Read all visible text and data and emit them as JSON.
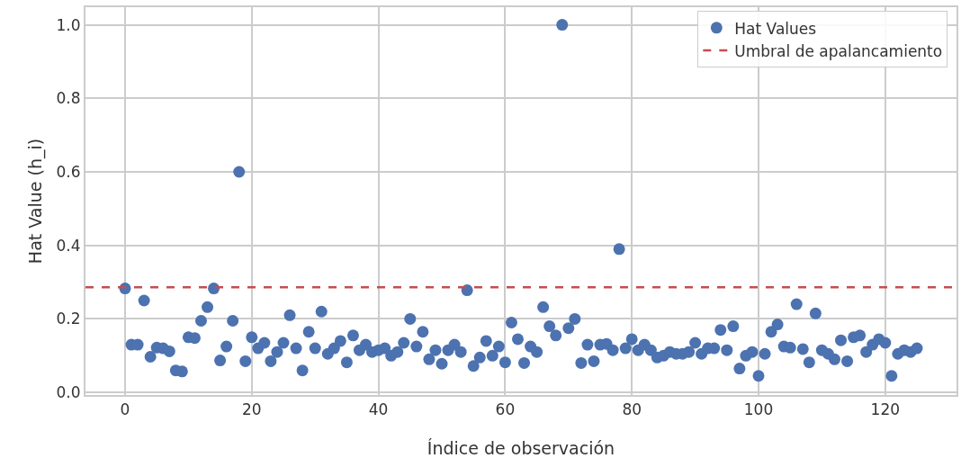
{
  "chart_data": {
    "type": "scatter",
    "xlabel": "Índice de observación",
    "ylabel": "Hat Value (h_i)",
    "x": [
      0,
      1,
      2,
      3,
      4,
      5,
      6,
      7,
      8,
      9,
      10,
      11,
      12,
      13,
      14,
      15,
      16,
      17,
      18,
      19,
      20,
      21,
      22,
      23,
      24,
      25,
      26,
      27,
      28,
      29,
      30,
      31,
      32,
      33,
      34,
      35,
      36,
      37,
      38,
      39,
      40,
      41,
      42,
      43,
      44,
      45,
      46,
      47,
      48,
      49,
      50,
      51,
      52,
      53,
      54,
      55,
      56,
      57,
      58,
      59,
      60,
      61,
      62,
      63,
      64,
      65,
      66,
      67,
      68,
      69,
      70,
      71,
      72,
      73,
      74,
      75,
      76,
      77,
      78,
      79,
      80,
      81,
      82,
      83,
      84,
      85,
      86,
      87,
      88,
      89,
      90,
      91,
      92,
      93,
      94,
      95,
      96,
      97,
      98,
      99,
      100,
      101,
      102,
      103,
      104,
      105,
      106,
      107,
      108,
      109,
      110,
      111,
      112,
      113,
      114,
      115,
      116,
      117,
      118,
      119,
      120,
      121,
      122,
      123,
      124,
      125
    ],
    "series": [
      {
        "name": "Hat Values",
        "color": "#4c72b0",
        "values": [
          0.283,
          0.13,
          0.13,
          0.25,
          0.097,
          0.122,
          0.12,
          0.112,
          0.06,
          0.057,
          0.15,
          0.148,
          0.195,
          0.232,
          0.283,
          0.087,
          0.125,
          0.195,
          0.6,
          0.085,
          0.15,
          0.12,
          0.135,
          0.085,
          0.11,
          0.135,
          0.21,
          0.12,
          0.06,
          0.165,
          0.12,
          0.22,
          0.105,
          0.12,
          0.14,
          0.082,
          0.155,
          0.115,
          0.13,
          0.11,
          0.115,
          0.12,
          0.1,
          0.11,
          0.135,
          0.2,
          0.125,
          0.165,
          0.09,
          0.115,
          0.078,
          0.115,
          0.13,
          0.11,
          0.278,
          0.072,
          0.095,
          0.14,
          0.1,
          0.125,
          0.082,
          0.19,
          0.145,
          0.08,
          0.125,
          0.11,
          0.232,
          0.18,
          0.155,
          1.0,
          0.175,
          0.2,
          0.08,
          0.13,
          0.085,
          0.13,
          0.132,
          0.115,
          0.39,
          0.12,
          0.145,
          0.115,
          0.13,
          0.115,
          0.095,
          0.1,
          0.11,
          0.105,
          0.105,
          0.11,
          0.135,
          0.105,
          0.12,
          0.12,
          0.17,
          0.115,
          0.18,
          0.065,
          0.1,
          0.11,
          0.045,
          0.105,
          0.165,
          0.185,
          0.125,
          0.122,
          0.24,
          0.118,
          0.082,
          0.215,
          0.115,
          0.105,
          0.09,
          0.142,
          0.085,
          0.15,
          0.155,
          0.11,
          0.13,
          0.145,
          0.135,
          0.045,
          0.105,
          0.115,
          0.11,
          0.12
        ]
      }
    ],
    "ref_lines": [
      {
        "axis": "y",
        "value": 0.286,
        "label": "Umbral de apalancamiento",
        "color": "#c44e52",
        "line_style": "dashed"
      }
    ],
    "xlim": [
      -6.25,
      131.25
    ],
    "xticks": [
      0,
      20,
      40,
      60,
      80,
      100,
      120
    ],
    "ylim": [
      -0.007,
      1.048
    ],
    "yticks": [
      {
        "value": 0,
        "label": "0.0"
      },
      {
        "value": 0.2,
        "label": "0.2"
      },
      {
        "value": 0.4,
        "label": "0.4"
      },
      {
        "value": 0.6,
        "label": "0.6"
      },
      {
        "value": 0.8,
        "label": "0.8"
      },
      {
        "value": 1,
        "label": "1.0"
      }
    ],
    "grid": true,
    "legend": "top right",
    "marker": "circle"
  }
}
